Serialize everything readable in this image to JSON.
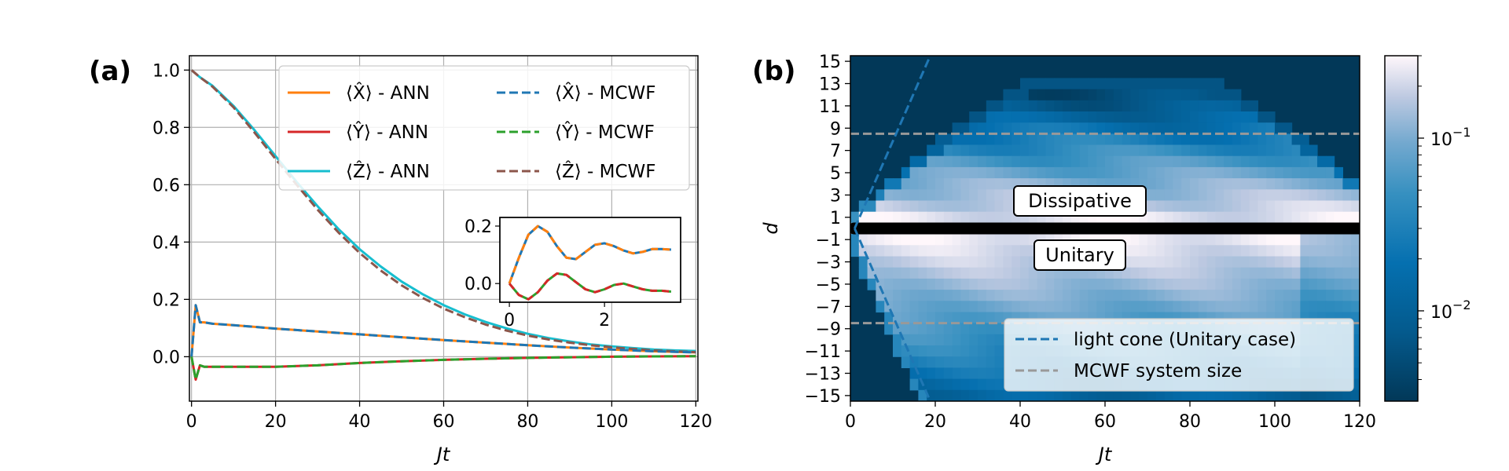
{
  "panel_a": {
    "label": "(a)",
    "legend": [
      {
        "text": "⟨X̂⟩ - ANN",
        "color": "#ff7f0e",
        "dash": false
      },
      {
        "text": "⟨Ŷ⟩ - ANN",
        "color": "#d62728",
        "dash": false
      },
      {
        "text": "⟨Ẑ⟩ - ANN",
        "color": "#17becf",
        "dash": false
      },
      {
        "text": "⟨X̂⟩ - MCWF",
        "color": "#1f77b4",
        "dash": true
      },
      {
        "text": "⟨Ŷ⟩ - MCWF",
        "color": "#2ca02c",
        "dash": true
      },
      {
        "text": "⟨Ẑ⟩ - MCWF",
        "color": "#8c564b",
        "dash": true
      }
    ]
  },
  "panel_b": {
    "label": "(b)",
    "dissipative_label": "Dissipative",
    "unitary_label": "Unitary",
    "legend": [
      {
        "text": "light cone (Unitary case)",
        "color": "#1f77b4",
        "dash": true
      },
      {
        "text": "MCWF system size",
        "color": "#999999",
        "dash": true
      }
    ],
    "colorbar": {
      "ticks": [
        "10",
        "10"
      ],
      "exponents": [
        "−1",
        "−2"
      ],
      "values": [
        0.1,
        0.01
      ]
    }
  },
  "chart_data": [
    {
      "type": "line",
      "xlabel": "Jt",
      "ylabel": "",
      "xlim": [
        -0.5,
        120.5
      ],
      "ylim": [
        -0.155,
        1.05
      ],
      "xticks": [
        0,
        20,
        40,
        60,
        80,
        100,
        120
      ],
      "yticks": [
        "0.0",
        "0.2",
        "0.4",
        "0.6",
        "0.8",
        "1.0"
      ],
      "ytick_values": [
        0,
        0.2,
        0.4,
        0.6,
        0.8,
        1.0
      ],
      "grid": true,
      "legend_position": "top-right",
      "series": [
        {
          "name": "⟨X̂⟩ - ANN",
          "x": [
            0,
            1,
            2,
            3,
            5,
            8,
            10,
            15,
            20,
            30,
            40,
            50,
            60,
            70,
            80,
            90,
            100,
            110,
            120
          ],
          "y": [
            0,
            0.18,
            0.12,
            0.12,
            0.115,
            0.112,
            0.11,
            0.104,
            0.098,
            0.088,
            0.078,
            0.068,
            0.058,
            0.049,
            0.04,
            0.032,
            0.025,
            0.019,
            0.015
          ]
        },
        {
          "name": "⟨Ŷ⟩ - ANN",
          "x": [
            0,
            1,
            2,
            3,
            5,
            10,
            20,
            30,
            40,
            50,
            60,
            70,
            80,
            90,
            100,
            110,
            120
          ],
          "y": [
            0,
            -0.08,
            -0.03,
            -0.035,
            -0.035,
            -0.035,
            -0.035,
            -0.03,
            -0.022,
            -0.016,
            -0.011,
            -0.007,
            -0.004,
            -0.002,
            0.0,
            0.001,
            0.002
          ]
        },
        {
          "name": "⟨Ẑ⟩ - ANN",
          "x": [
            0,
            2,
            5,
            10,
            15,
            20,
            25,
            30,
            35,
            40,
            45,
            50,
            55,
            60,
            65,
            70,
            75,
            80,
            85,
            90,
            95,
            100,
            105,
            110,
            115,
            120
          ],
          "y": [
            1.0,
            0.975,
            0.945,
            0.875,
            0.79,
            0.7,
            0.61,
            0.525,
            0.445,
            0.375,
            0.315,
            0.262,
            0.218,
            0.18,
            0.148,
            0.121,
            0.099,
            0.08,
            0.065,
            0.053,
            0.043,
            0.036,
            0.03,
            0.025,
            0.022,
            0.02
          ]
        },
        {
          "name": "⟨X̂⟩ - MCWF",
          "x": [
            0,
            1,
            2,
            3,
            5,
            8,
            10,
            15,
            20,
            30,
            40,
            50,
            60,
            70,
            80,
            90,
            100,
            110,
            120
          ],
          "y": [
            0,
            0.18,
            0.12,
            0.12,
            0.115,
            0.112,
            0.11,
            0.104,
            0.098,
            0.088,
            0.078,
            0.068,
            0.058,
            0.049,
            0.04,
            0.032,
            0.025,
            0.019,
            0.015
          ]
        },
        {
          "name": "⟨Ŷ⟩ - MCWF",
          "x": [
            0,
            1,
            2,
            3,
            5,
            10,
            20,
            30,
            40,
            50,
            60,
            70,
            80,
            90,
            100,
            110,
            120
          ],
          "y": [
            0,
            -0.08,
            -0.03,
            -0.035,
            -0.035,
            -0.035,
            -0.035,
            -0.03,
            -0.022,
            -0.016,
            -0.011,
            -0.007,
            -0.004,
            -0.002,
            0.0,
            0.001,
            0.002
          ]
        },
        {
          "name": "⟨Ẑ⟩ - MCWF",
          "x": [
            0,
            2,
            5,
            10,
            15,
            20,
            25,
            30,
            35,
            40,
            45,
            50,
            55,
            60,
            65,
            70,
            75,
            80,
            85,
            90,
            95,
            100,
            105,
            110,
            115,
            120
          ],
          "y": [
            1.0,
            0.975,
            0.942,
            0.87,
            0.782,
            0.69,
            0.6,
            0.513,
            0.433,
            0.362,
            0.301,
            0.249,
            0.205,
            0.168,
            0.138,
            0.112,
            0.091,
            0.074,
            0.06,
            0.049,
            0.04,
            0.033,
            0.027,
            0.022,
            0.019,
            0.016
          ]
        }
      ]
    },
    {
      "type": "line",
      "role": "inset",
      "xlim": [
        -0.2,
        3.6
      ],
      "ylim": [
        -0.065,
        0.23
      ],
      "xticks": [
        0,
        2
      ],
      "yticks": [
        "0.0",
        "0.2"
      ],
      "ytick_values": [
        0,
        0.2
      ],
      "series": [
        {
          "name": "⟨X̂⟩",
          "x": [
            0,
            0.2,
            0.4,
            0.6,
            0.8,
            1.0,
            1.2,
            1.4,
            1.6,
            1.8,
            2.0,
            2.2,
            2.4,
            2.6,
            2.8,
            3.0,
            3.2,
            3.4
          ],
          "y": [
            0,
            0.09,
            0.17,
            0.2,
            0.18,
            0.13,
            0.09,
            0.085,
            0.11,
            0.135,
            0.14,
            0.13,
            0.115,
            0.105,
            0.11,
            0.12,
            0.12,
            0.118
          ]
        },
        {
          "name": "⟨Ŷ⟩",
          "x": [
            0,
            0.2,
            0.4,
            0.6,
            0.8,
            1.0,
            1.2,
            1.4,
            1.6,
            1.8,
            2.0,
            2.2,
            2.4,
            2.6,
            2.8,
            3.0,
            3.2,
            3.4
          ],
          "y": [
            0,
            -0.04,
            -0.055,
            -0.03,
            0.01,
            0.035,
            0.03,
            0.005,
            -0.02,
            -0.03,
            -0.02,
            -0.005,
            0.0,
            -0.01,
            -0.02,
            -0.025,
            -0.025,
            -0.028
          ]
        }
      ]
    },
    {
      "type": "heatmap",
      "xlabel": "Jt",
      "ylabel": "d",
      "xlim": [
        0,
        120
      ],
      "ylim": [
        -15.5,
        15.5
      ],
      "xticks": [
        0,
        20,
        40,
        60,
        80,
        100,
        120
      ],
      "yticks": [
        "15",
        "13",
        "11",
        "9",
        "7",
        "5",
        "3",
        "1",
        "−1",
        "−3",
        "−5",
        "−7",
        "−9",
        "−11",
        "−13",
        "−15"
      ],
      "ytick_values": [
        15,
        13,
        11,
        9,
        7,
        5,
        3,
        1,
        -1,
        -3,
        -5,
        -7,
        -9,
        -11,
        -13,
        -15
      ],
      "colorbar_scale": "log",
      "colorbar_range": [
        0.003,
        0.3
      ],
      "light_cone_slope": 0.87,
      "mcwf_system_size": [
        8.5,
        -8.5
      ]
    }
  ]
}
